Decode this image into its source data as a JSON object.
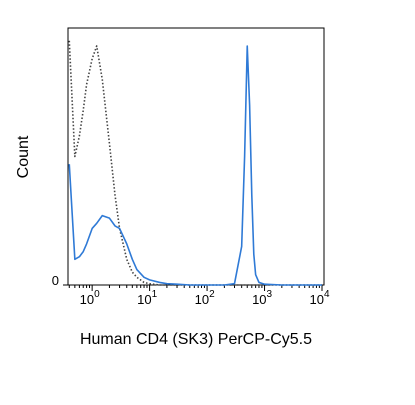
{
  "chart_data": {
    "type": "line",
    "x_label": "Human CD4 (SK3) PerCP-Cy5.5",
    "y_label": "Count",
    "x_scale": "log",
    "xlim": [
      0.38,
      10000
    ],
    "xticks": [
      {
        "value": 1,
        "label": "10",
        "exponent": "0"
      },
      {
        "value": 10,
        "label": "10",
        "exponent": "1"
      },
      {
        "value": 100,
        "label": "10",
        "exponent": "2"
      },
      {
        "value": 1000,
        "label": "10",
        "exponent": "3"
      },
      {
        "value": 10000,
        "label": "10",
        "exponent": "4"
      }
    ],
    "ylim": [
      0,
      100
    ],
    "yticks": [
      0
    ],
    "x": [
      0.4,
      0.5,
      0.6,
      0.7,
      0.8,
      1,
      1.2,
      1.5,
      2,
      2.5,
      3,
      4,
      5,
      6,
      8,
      10,
      15,
      20,
      30,
      50,
      100,
      200,
      300,
      400,
      450,
      500,
      550,
      600,
      650,
      700,
      800,
      1000,
      2000,
      5000,
      10000
    ],
    "series": [
      {
        "color": "#444444",
        "dash": "dotted",
        "values": [
          95,
          50,
          58,
          68,
          78,
          88,
          93,
          80,
          55,
          35,
          22,
          10,
          5,
          3,
          1,
          0.5,
          0,
          0,
          0,
          0,
          0,
          0,
          0,
          0,
          0,
          0,
          0,
          0,
          0,
          0,
          0,
          0,
          0,
          0,
          0
        ]
      },
      {
        "color": "#2f7ad6",
        "dash": "solid",
        "values": [
          47,
          10,
          11,
          13,
          16,
          22,
          24,
          27,
          26,
          23,
          22,
          16,
          10,
          6,
          3,
          2,
          1,
          0.5,
          0.3,
          0,
          0,
          0,
          0.5,
          15,
          50,
          93,
          70,
          35,
          12,
          4,
          1,
          0.3,
          0,
          0,
          0
        ]
      }
    ]
  }
}
